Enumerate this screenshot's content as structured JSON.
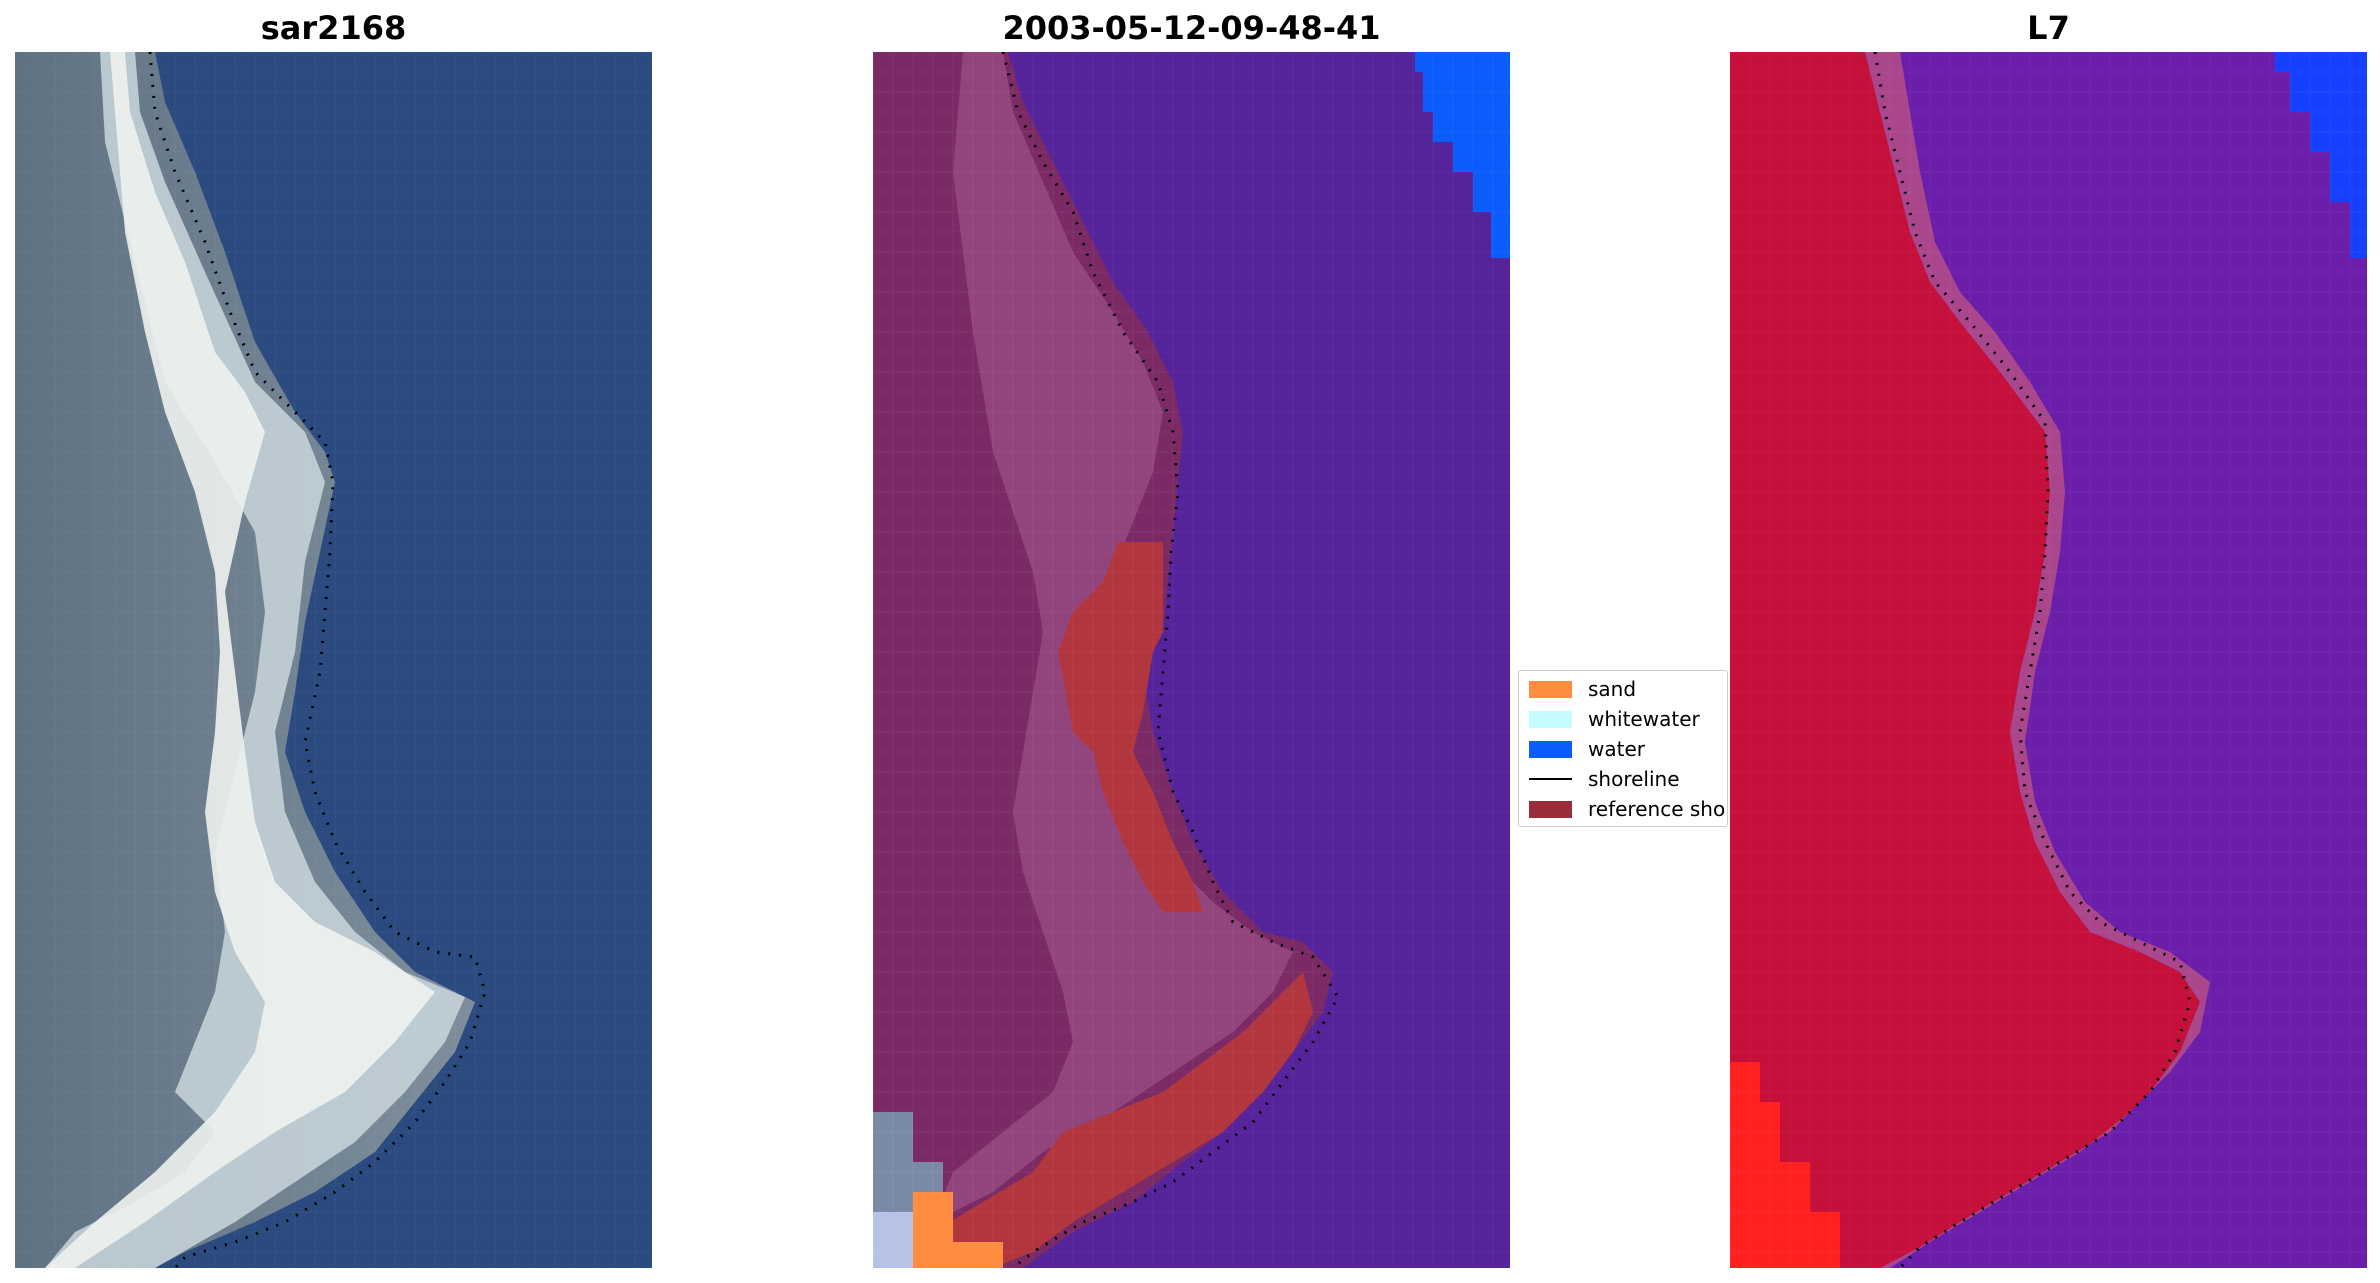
{
  "panels": [
    {
      "title": "sar2168"
    },
    {
      "title": "2003-05-12-09-48-41"
    },
    {
      "title": "L7"
    }
  ],
  "legend": {
    "placement": "center-right of middle panel",
    "items": [
      {
        "label": "sand",
        "color": "#ff8c3f",
        "kind": "patch"
      },
      {
        "label": "whitewater",
        "color": "#c6fcfe",
        "kind": "patch"
      },
      {
        "label": "water",
        "color": "#0a5cfb",
        "kind": "patch"
      },
      {
        "label": "shoreline",
        "color": "#000000",
        "kind": "line"
      },
      {
        "label": "reference sho",
        "color": "#9b2d3a",
        "kind": "patch"
      }
    ]
  },
  "colors": {
    "rgb_water": "#2a4a80",
    "rgb_land": "#6d7d8c",
    "rgb_whitewater": "#e8eef0",
    "class_land": "#7b2a66",
    "class_water": "#55239a",
    "class_reference": "#b2363e",
    "nir_land": "#c4103a",
    "nir_water": "#6a1eaa",
    "nir_bright_red": "#ff2020",
    "blue_corner": "#1540ff"
  }
}
